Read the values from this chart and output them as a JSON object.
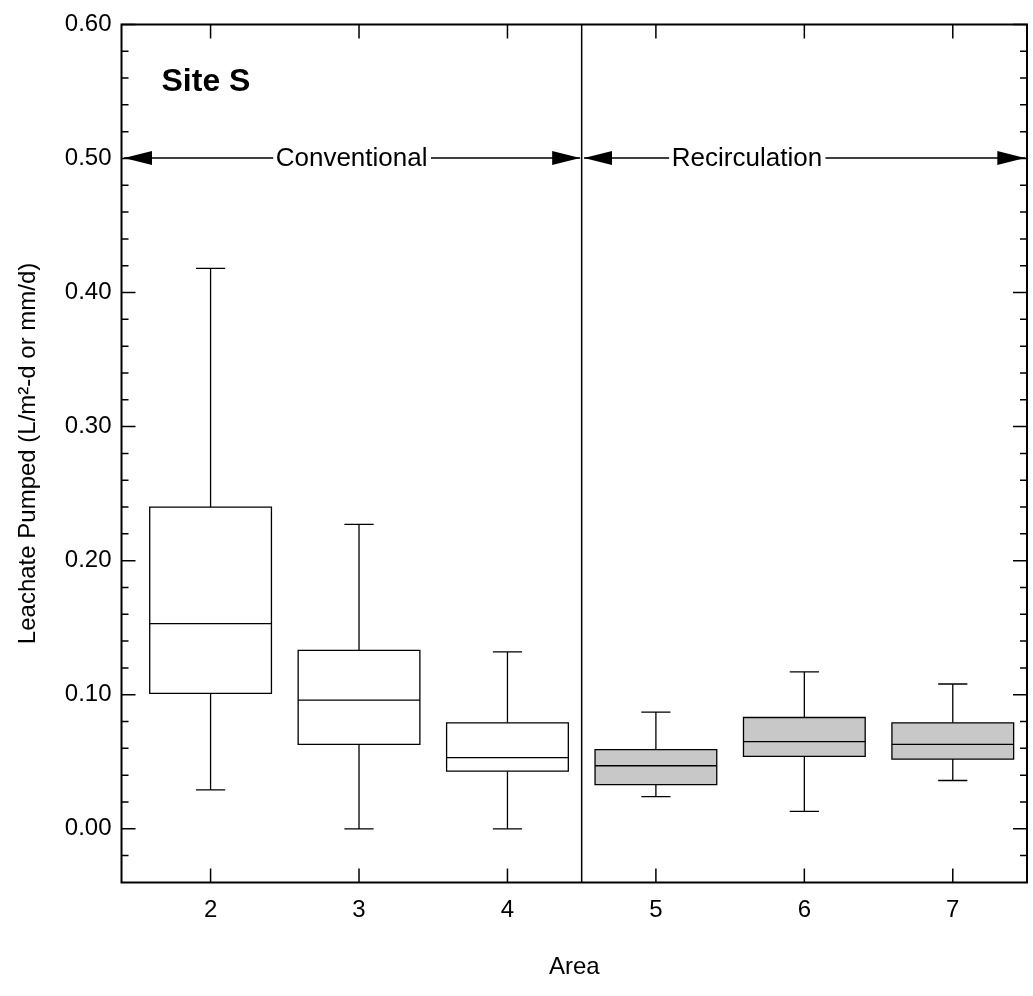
{
  "chart_data": {
    "type": "box",
    "xlabel": "Area",
    "ylabel": "Leachate Pumped (L/m²-d or mm/d)",
    "x": [
      2,
      3,
      4,
      5,
      6,
      7
    ],
    "boxes": [
      {
        "low": 0.029,
        "q1": 0.101,
        "median": 0.153,
        "q3": 0.24,
        "high": 0.418
      },
      {
        "low": 0,
        "q1": 0.063,
        "median": 0.096,
        "q3": 0.133,
        "high": 0.227
      },
      {
        "low": 0,
        "q1": 0.043,
        "median": 0.053,
        "q3": 0.079,
        "high": 0.132
      },
      {
        "low": 0.024,
        "q1": 0.033,
        "median": 0.047,
        "q3": 0.059,
        "high": 0.087
      },
      {
        "low": 0.013,
        "q1": 0.054,
        "median": 0.065,
        "q3": 0.083,
        "high": 0.117
      },
      {
        "low": 0.036,
        "q1": 0.052,
        "median": 0.063,
        "q3": 0.079,
        "high": 0.108
      }
    ],
    "colors": [
      "#ffffff",
      "#ffffff",
      "#ffffff",
      "#c8c8c8",
      "#c8c8c8",
      "#c8c8c8"
    ],
    "xlim": [
      1.4,
      7.5
    ],
    "xticks": [
      2,
      3,
      4,
      5,
      6,
      7
    ],
    "ylim": [
      -0.04,
      0.6
    ],
    "yticks": [
      {
        "value": -0.02,
        "label": null
      },
      {
        "value": 0,
        "label": "0.00"
      },
      {
        "value": 0.02,
        "label": null
      },
      {
        "value": 0.04,
        "label": null
      },
      {
        "value": 0.06,
        "label": null
      },
      {
        "value": 0.08,
        "label": null
      },
      {
        "value": 0.1,
        "label": "0.10"
      },
      {
        "value": 0.12,
        "label": null
      },
      {
        "value": 0.14,
        "label": null
      },
      {
        "value": 0.16,
        "label": null
      },
      {
        "value": 0.18,
        "label": null
      },
      {
        "value": 0.2,
        "label": "0.20"
      },
      {
        "value": 0.22,
        "label": null
      },
      {
        "value": 0.24,
        "label": null
      },
      {
        "value": 0.26,
        "label": null
      },
      {
        "value": 0.28,
        "label": null
      },
      {
        "value": 0.3,
        "label": "0.30"
      },
      {
        "value": 0.32,
        "label": null
      },
      {
        "value": 0.34,
        "label": null
      },
      {
        "value": 0.36,
        "label": null
      },
      {
        "value": 0.38,
        "label": null
      },
      {
        "value": 0.4,
        "label": "0.40"
      },
      {
        "value": 0.42,
        "label": null
      },
      {
        "value": 0.44,
        "label": null
      },
      {
        "value": 0.46,
        "label": null
      },
      {
        "value": 0.48,
        "label": null
      },
      {
        "value": 0.5,
        "label": "0.50"
      },
      {
        "value": 0.52,
        "label": null
      },
      {
        "value": 0.54,
        "label": null
      },
      {
        "value": 0.56,
        "label": null
      },
      {
        "value": 0.58,
        "label": null
      },
      {
        "value": 0.6,
        "label": "0.60"
      }
    ],
    "ref_lines": [
      {
        "axis": "x",
        "value": 4.5,
        "color": "#000000"
      }
    ],
    "annotations": [
      "Site S",
      {
        "text": "Conventional",
        "x": 4.5,
        "y": 0.5
      },
      {
        "text": "Recirculation",
        "x": 4.5,
        "y": 0.5
      }
    ],
    "grid": false
  }
}
